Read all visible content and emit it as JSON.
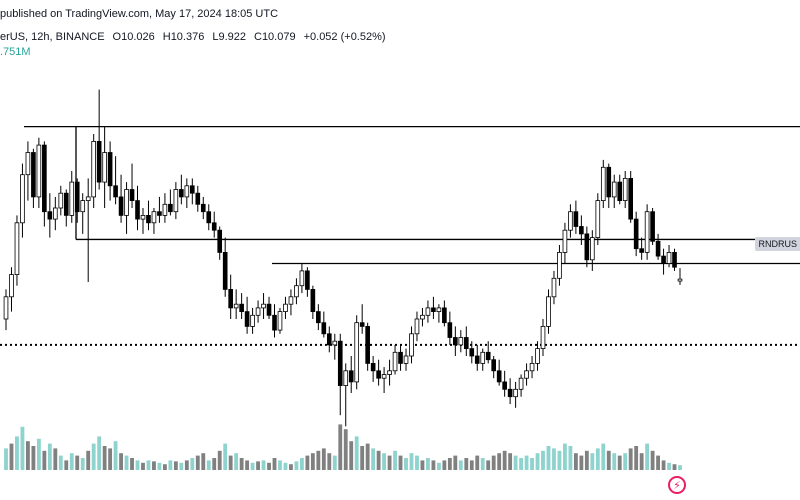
{
  "header": {
    "published": "published on TradingView.com, May 17, 2024 18:05 UTC",
    "symbol": "erUS, 12h, BINANCE",
    "open": "O10.026",
    "high": "H10.376",
    "low": "L9.922",
    "close": "C10.079",
    "change": "+0.052 (+0.52%)",
    "volume": ".751M"
  },
  "price_tag": "RNDRUS",
  "logo_icon": "lightning-icon",
  "colors": {
    "up": "#ffffff",
    "down": "#000000",
    "wick": "#000000",
    "vol_up": "#8fd3cf",
    "vol_down": "#808080",
    "vol_up_dark": "#5cb8b2"
  },
  "chart_data": {
    "type": "candlestick",
    "y_range": [
      6.0,
      16.0
    ],
    "candles": [
      [
        9.0,
        9.8,
        8.7,
        9.6
      ],
      [
        9.6,
        10.4,
        9.2,
        10.2
      ],
      [
        10.2,
        11.8,
        9.9,
        11.6
      ],
      [
        11.6,
        13.2,
        11.2,
        12.9
      ],
      [
        12.9,
        13.8,
        12.2,
        13.5
      ],
      [
        13.5,
        13.6,
        12.0,
        12.3
      ],
      [
        12.3,
        13.9,
        12.0,
        13.7
      ],
      [
        13.7,
        13.8,
        11.5,
        11.9
      ],
      [
        11.9,
        12.4,
        11.2,
        11.7
      ],
      [
        11.7,
        12.3,
        11.4,
        12.0
      ],
      [
        12.0,
        12.6,
        11.8,
        12.4
      ],
      [
        12.4,
        12.5,
        11.5,
        11.8
      ],
      [
        11.8,
        13.0,
        11.6,
        12.7
      ],
      [
        12.7,
        12.8,
        11.6,
        11.9
      ],
      [
        11.9,
        12.4,
        11.3,
        12.2
      ],
      [
        12.2,
        12.8,
        10.0,
        12.3
      ],
      [
        12.3,
        14.0,
        12.0,
        13.8
      ],
      [
        13.8,
        15.2,
        12.5,
        12.7
      ],
      [
        12.7,
        14.2,
        12.0,
        13.5
      ],
      [
        13.5,
        13.8,
        12.2,
        12.6
      ],
      [
        12.6,
        13.4,
        12.1,
        12.3
      ],
      [
        12.3,
        12.9,
        11.6,
        11.8
      ],
      [
        11.8,
        12.7,
        11.3,
        12.5
      ],
      [
        12.5,
        13.2,
        12.0,
        12.2
      ],
      [
        12.2,
        12.6,
        11.4,
        11.7
      ],
      [
        11.7,
        12.0,
        11.3,
        11.8
      ],
      [
        11.8,
        12.2,
        11.4,
        11.6
      ],
      [
        11.6,
        12.0,
        11.3,
        11.9
      ],
      [
        11.9,
        12.3,
        11.6,
        11.8
      ],
      [
        11.8,
        12.4,
        11.6,
        12.1
      ],
      [
        12.1,
        12.5,
        11.8,
        11.9
      ],
      [
        11.9,
        12.7,
        11.7,
        12.5
      ],
      [
        12.5,
        12.9,
        12.1,
        12.3
      ],
      [
        12.3,
        12.8,
        12.0,
        12.6
      ],
      [
        12.6,
        12.8,
        12.1,
        12.4
      ],
      [
        12.4,
        12.6,
        11.9,
        12.1
      ],
      [
        12.1,
        12.3,
        11.7,
        11.9
      ],
      [
        11.9,
        12.1,
        11.4,
        11.6
      ],
      [
        11.6,
        11.9,
        11.2,
        11.4
      ],
      [
        11.4,
        11.5,
        10.6,
        10.8
      ],
      [
        10.8,
        11.2,
        9.6,
        9.8
      ],
      [
        9.8,
        10.2,
        9.0,
        9.3
      ],
      [
        9.3,
        9.8,
        9.0,
        9.4
      ],
      [
        9.4,
        9.7,
        9.0,
        9.2
      ],
      [
        9.2,
        9.6,
        8.6,
        8.8
      ],
      [
        8.8,
        9.3,
        8.6,
        9.1
      ],
      [
        9.1,
        9.5,
        8.9,
        9.3
      ],
      [
        9.3,
        9.7,
        9.0,
        9.4
      ],
      [
        9.4,
        9.6,
        9.0,
        9.1
      ],
      [
        9.1,
        9.4,
        8.5,
        8.7
      ],
      [
        8.7,
        9.3,
        8.6,
        9.2
      ],
      [
        9.2,
        9.6,
        9.0,
        9.4
      ],
      [
        9.4,
        9.8,
        9.1,
        9.6
      ],
      [
        9.6,
        10.1,
        9.4,
        9.9
      ],
      [
        9.9,
        10.5,
        9.7,
        10.3
      ],
      [
        10.3,
        10.4,
        9.6,
        9.8
      ],
      [
        9.8,
        9.9,
        9.0,
        9.2
      ],
      [
        9.2,
        9.4,
        8.7,
        8.9
      ],
      [
        8.9,
        9.2,
        8.5,
        8.6
      ],
      [
        8.6,
        8.8,
        8.1,
        8.3
      ],
      [
        8.3,
        8.6,
        7.9,
        8.4
      ],
      [
        8.4,
        8.6,
        6.4,
        7.2
      ],
      [
        7.2,
        7.8,
        6.1,
        7.6
      ],
      [
        7.6,
        8.0,
        7.0,
        7.3
      ],
      [
        7.3,
        9.1,
        7.1,
        8.9
      ],
      [
        8.9,
        9.4,
        8.6,
        8.8
      ],
      [
        8.8,
        8.9,
        7.6,
        7.8
      ],
      [
        7.8,
        8.0,
        7.3,
        7.6
      ],
      [
        7.6,
        7.9,
        7.2,
        7.4
      ],
      [
        7.4,
        7.7,
        7.0,
        7.5
      ],
      [
        7.5,
        7.9,
        7.2,
        7.6
      ],
      [
        7.6,
        8.3,
        7.5,
        8.1
      ],
      [
        8.1,
        8.3,
        7.6,
        7.8
      ],
      [
        7.8,
        8.2,
        7.6,
        8.0
      ],
      [
        8.0,
        8.8,
        7.8,
        8.6
      ],
      [
        8.6,
        9.2,
        8.4,
        9.0
      ],
      [
        9.0,
        9.3,
        8.8,
        9.1
      ],
      [
        9.1,
        9.5,
        8.9,
        9.3
      ],
      [
        9.3,
        9.6,
        9.0,
        9.2
      ],
      [
        9.2,
        9.4,
        8.9,
        9.3
      ],
      [
        9.3,
        9.5,
        8.8,
        8.9
      ],
      [
        8.9,
        9.2,
        8.3,
        8.5
      ],
      [
        8.5,
        8.8,
        8.0,
        8.3
      ],
      [
        8.3,
        8.7,
        8.1,
        8.5
      ],
      [
        8.5,
        8.8,
        8.0,
        8.2
      ],
      [
        8.2,
        8.4,
        7.8,
        8.0
      ],
      [
        8.0,
        8.3,
        7.6,
        7.8
      ],
      [
        7.8,
        8.2,
        7.6,
        8.1
      ],
      [
        8.1,
        8.4,
        7.8,
        7.9
      ],
      [
        7.9,
        8.0,
        7.4,
        7.6
      ],
      [
        7.6,
        7.9,
        7.2,
        7.3
      ],
      [
        7.3,
        7.6,
        6.9,
        7.1
      ],
      [
        7.1,
        7.4,
        6.7,
        6.9
      ],
      [
        6.9,
        7.3,
        6.6,
        7.1
      ],
      [
        7.1,
        7.5,
        6.9,
        7.4
      ],
      [
        7.4,
        7.8,
        7.2,
        7.6
      ],
      [
        7.6,
        8.0,
        7.4,
        7.8
      ],
      [
        7.8,
        8.4,
        7.6,
        8.2
      ],
      [
        8.2,
        9.0,
        8.0,
        8.8
      ],
      [
        8.8,
        9.8,
        8.6,
        9.6
      ],
      [
        9.6,
        10.3,
        9.4,
        10.1
      ],
      [
        10.1,
        11.0,
        9.9,
        10.8
      ],
      [
        10.8,
        11.6,
        10.5,
        11.4
      ],
      [
        11.4,
        12.1,
        11.2,
        11.9
      ],
      [
        11.9,
        12.2,
        11.3,
        11.5
      ],
      [
        11.5,
        11.8,
        11.0,
        11.3
      ],
      [
        11.3,
        11.5,
        10.4,
        10.6
      ],
      [
        10.6,
        11.4,
        10.3,
        11.2
      ],
      [
        11.2,
        12.4,
        11.0,
        12.2
      ],
      [
        12.2,
        13.3,
        12.0,
        13.1
      ],
      [
        13.1,
        13.2,
        12.0,
        12.3
      ],
      [
        12.3,
        12.9,
        12.0,
        12.7
      ],
      [
        12.7,
        12.9,
        12.1,
        12.2
      ],
      [
        12.2,
        13.0,
        12.0,
        12.8
      ],
      [
        12.8,
        13.0,
        11.6,
        11.7
      ],
      [
        11.7,
        11.9,
        10.7,
        10.9
      ],
      [
        10.9,
        11.2,
        10.6,
        10.8
      ],
      [
        10.8,
        12.1,
        10.6,
        11.9
      ],
      [
        11.9,
        12.0,
        11.0,
        11.1
      ],
      [
        11.1,
        11.3,
        10.6,
        10.7
      ],
      [
        10.7,
        10.9,
        10.2,
        10.5
      ],
      [
        10.5,
        11.0,
        10.4,
        10.8
      ],
      [
        10.8,
        10.9,
        10.3,
        10.4
      ],
      [
        10.026,
        10.376,
        9.922,
        10.079
      ]
    ],
    "volumes": [
      [
        0.45,
        "up"
      ],
      [
        0.55,
        "down"
      ],
      [
        0.7,
        "up"
      ],
      [
        0.9,
        "up"
      ],
      [
        0.6,
        "down"
      ],
      [
        0.5,
        "down"
      ],
      [
        0.65,
        "up"
      ],
      [
        0.4,
        "down"
      ],
      [
        0.55,
        "up"
      ],
      [
        0.45,
        "down"
      ],
      [
        0.3,
        "up"
      ],
      [
        0.2,
        "down"
      ],
      [
        0.35,
        "up"
      ],
      [
        0.3,
        "down"
      ],
      [
        0.25,
        "up"
      ],
      [
        0.4,
        "down"
      ],
      [
        0.55,
        "up"
      ],
      [
        0.7,
        "up"
      ],
      [
        0.5,
        "down"
      ],
      [
        0.45,
        "down"
      ],
      [
        0.6,
        "up"
      ],
      [
        0.35,
        "down"
      ],
      [
        0.3,
        "up"
      ],
      [
        0.25,
        "down"
      ],
      [
        0.2,
        "up"
      ],
      [
        0.15,
        "down"
      ],
      [
        0.2,
        "up"
      ],
      [
        0.18,
        "down"
      ],
      [
        0.15,
        "up"
      ],
      [
        0.12,
        "down"
      ],
      [
        0.2,
        "up"
      ],
      [
        0.18,
        "down"
      ],
      [
        0.15,
        "up"
      ],
      [
        0.2,
        "down"
      ],
      [
        0.25,
        "up"
      ],
      [
        0.3,
        "down"
      ],
      [
        0.35,
        "down"
      ],
      [
        0.2,
        "up"
      ],
      [
        0.25,
        "down"
      ],
      [
        0.4,
        "down"
      ],
      [
        0.55,
        "up"
      ],
      [
        0.3,
        "down"
      ],
      [
        0.35,
        "up"
      ],
      [
        0.25,
        "down"
      ],
      [
        0.2,
        "down"
      ],
      [
        0.15,
        "up"
      ],
      [
        0.18,
        "down"
      ],
      [
        0.2,
        "up"
      ],
      [
        0.15,
        "down"
      ],
      [
        0.25,
        "down"
      ],
      [
        0.2,
        "up"
      ],
      [
        0.15,
        "up"
      ],
      [
        0.12,
        "down"
      ],
      [
        0.18,
        "up"
      ],
      [
        0.25,
        "up"
      ],
      [
        0.3,
        "down"
      ],
      [
        0.35,
        "down"
      ],
      [
        0.4,
        "down"
      ],
      [
        0.45,
        "down"
      ],
      [
        0.35,
        "down"
      ],
      [
        0.3,
        "up"
      ],
      [
        0.95,
        "down"
      ],
      [
        0.85,
        "down"
      ],
      [
        0.6,
        "down"
      ],
      [
        0.7,
        "up"
      ],
      [
        0.5,
        "down"
      ],
      [
        0.55,
        "down"
      ],
      [
        0.45,
        "up"
      ],
      [
        0.4,
        "down"
      ],
      [
        0.35,
        "up"
      ],
      [
        0.3,
        "down"
      ],
      [
        0.4,
        "up"
      ],
      [
        0.3,
        "down"
      ],
      [
        0.25,
        "up"
      ],
      [
        0.35,
        "up"
      ],
      [
        0.3,
        "up"
      ],
      [
        0.2,
        "down"
      ],
      [
        0.25,
        "up"
      ],
      [
        0.2,
        "down"
      ],
      [
        0.15,
        "up"
      ],
      [
        0.2,
        "down"
      ],
      [
        0.25,
        "down"
      ],
      [
        0.3,
        "down"
      ],
      [
        0.2,
        "up"
      ],
      [
        0.25,
        "down"
      ],
      [
        0.2,
        "down"
      ],
      [
        0.3,
        "down"
      ],
      [
        0.25,
        "up"
      ],
      [
        0.2,
        "down"
      ],
      [
        0.3,
        "down"
      ],
      [
        0.35,
        "down"
      ],
      [
        0.4,
        "down"
      ],
      [
        0.35,
        "down"
      ],
      [
        0.3,
        "up"
      ],
      [
        0.25,
        "up"
      ],
      [
        0.3,
        "up"
      ],
      [
        0.25,
        "up"
      ],
      [
        0.35,
        "up"
      ],
      [
        0.4,
        "up"
      ],
      [
        0.5,
        "up"
      ],
      [
        0.45,
        "up"
      ],
      [
        0.4,
        "up"
      ],
      [
        0.55,
        "up"
      ],
      [
        0.5,
        "up"
      ],
      [
        0.35,
        "down"
      ],
      [
        0.3,
        "down"
      ],
      [
        0.4,
        "down"
      ],
      [
        0.35,
        "up"
      ],
      [
        0.45,
        "up"
      ],
      [
        0.55,
        "up"
      ],
      [
        0.4,
        "down"
      ],
      [
        0.35,
        "up"
      ],
      [
        0.3,
        "down"
      ],
      [
        0.35,
        "up"
      ],
      [
        0.45,
        "down"
      ],
      [
        0.5,
        "down"
      ],
      [
        0.35,
        "down"
      ],
      [
        0.55,
        "up"
      ],
      [
        0.4,
        "down"
      ],
      [
        0.3,
        "down"
      ],
      [
        0.2,
        "down"
      ],
      [
        0.15,
        "up"
      ],
      [
        0.12,
        "down"
      ],
      [
        0.1,
        "up"
      ]
    ],
    "horizontal_lines": [
      {
        "price": 14.2,
        "style": "solid",
        "x_from": 0.03
      },
      {
        "price": 11.15,
        "style": "solid",
        "x_from": 0.095
      },
      {
        "price": 10.5,
        "style": "solid",
        "x_from": 0.34
      },
      {
        "price": 8.3,
        "style": "dotted",
        "x_from": 0.0
      }
    ],
    "rect_left_edge": {
      "price_from": 11.15,
      "price_to": 14.2,
      "x": 0.095
    }
  }
}
